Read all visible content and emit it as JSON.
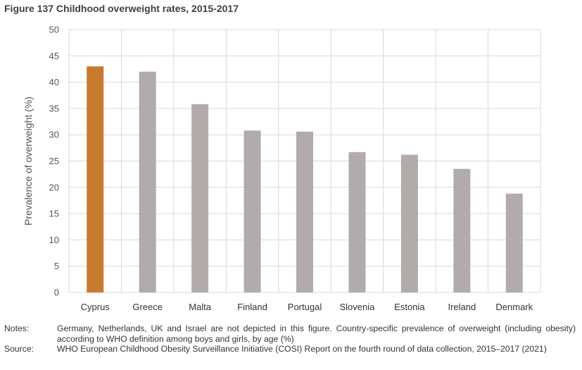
{
  "title": "Figure 137 Childhood overweight rates, 2015-2017",
  "chart_data": {
    "type": "bar",
    "title": "Figure 137 Childhood overweight rates, 2015-2017",
    "ylabel": "Prevalence of overweight (%)",
    "xlabel": "",
    "ylim": [
      0,
      50
    ],
    "yticks": [
      0,
      5,
      10,
      15,
      20,
      25,
      30,
      35,
      40,
      45,
      50
    ],
    "grid": "both",
    "categories": [
      "Cyprus",
      "Greece",
      "Malta",
      "Finland",
      "Portugal",
      "Slovenia",
      "Estonia",
      "Ireland",
      "Denmark"
    ],
    "values": [
      43,
      42,
      35.8,
      30.8,
      30.6,
      26.7,
      26.2,
      23.5,
      18.8
    ],
    "colors": {
      "highlight": "#C87A2E",
      "default": "#B1ABAB"
    },
    "highlight_index": 0
  },
  "notes": {
    "notes_label": "Notes:",
    "notes_text": "Germany, Netherlands, UK and Israel are not depicted in this figure. Country-specific prevalence of overweight (including obesity) according to WHO definition among boys and girls, by age (%)",
    "source_label": "Source:",
    "source_text": "WHO European Childhood Obesity Surveillance Initiative (COSI) Report on the fourth round of data collection, 2015–2017 (2021)"
  }
}
